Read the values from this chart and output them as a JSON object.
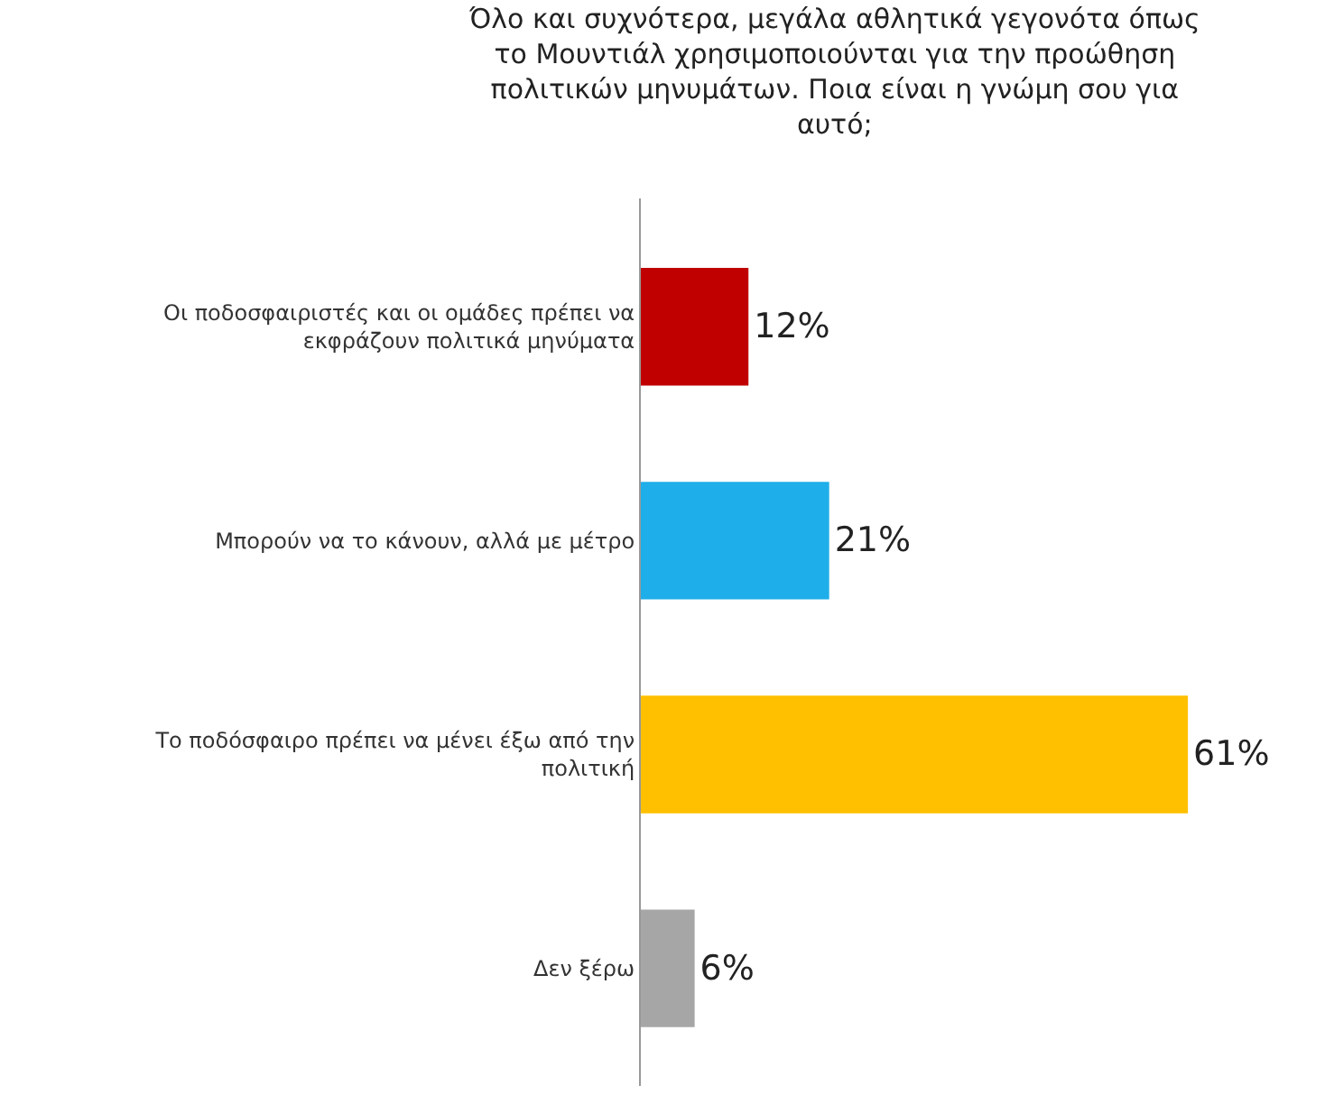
{
  "chart_data": {
    "type": "bar",
    "orientation": "horizontal",
    "title": "Όλο και συχνότερα, μεγάλα αθλητικά γεγονότα όπως το Μουντιάλ χρησιμοποιούνται για την προώθηση πολιτικών μηνυμάτων. Ποια είναι η γνώμη σου για αυτό;",
    "categories": [
      "Οι ποδοσφαιριστές και οι ομάδες πρέπει να εκφράζουν πολιτικά μηνύματα",
      "Μπορούν να το κάνουν, αλλά με μέτρο",
      "Το ποδόσφαιρο πρέπει να μένει έξω από την πολιτική",
      "Δεν ξέρω"
    ],
    "values": [
      12,
      21,
      61,
      6
    ],
    "colors": [
      "#c00000",
      "#1eaee9",
      "#ffc000",
      "#a6a6a6"
    ],
    "value_labels": [
      "12%",
      "21%",
      "61%",
      "6%"
    ],
    "legend": false
  }
}
